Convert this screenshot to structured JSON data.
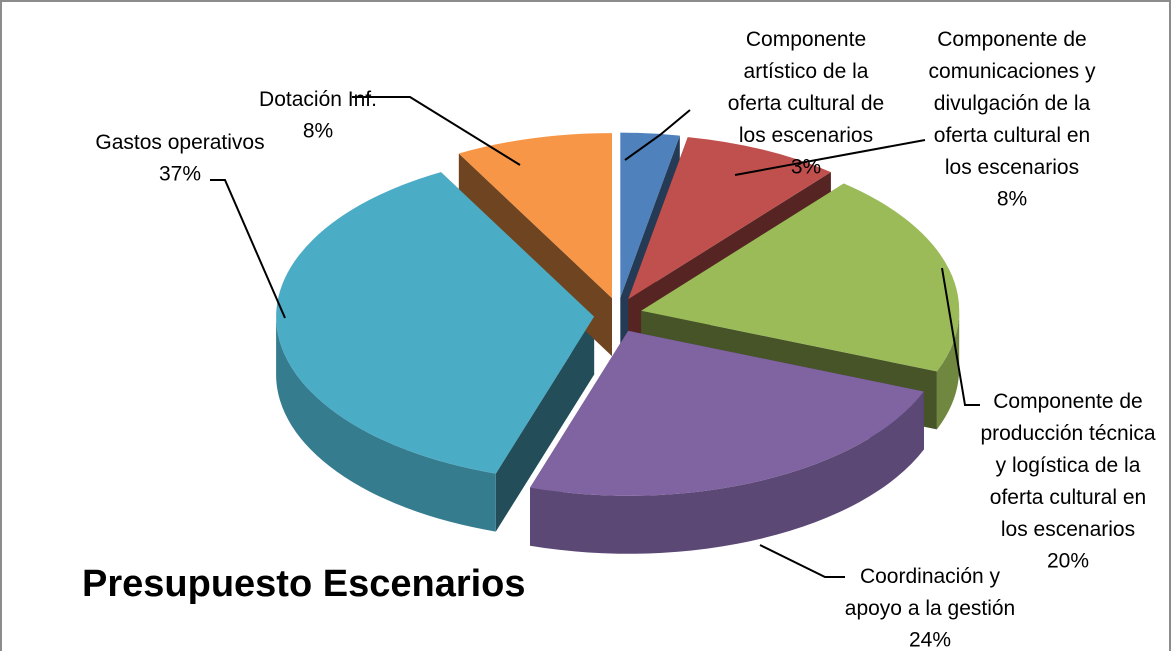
{
  "chart_data": {
    "type": "pie3d",
    "title": "Presupuesto Escenarios",
    "categories": [
      "Componente artístico de la oferta cultural de los escenarios",
      "Componente de comunicaciones y divulgación de la oferta cultural en los escenarios",
      "Componente de producción técnica y logística de la oferta cultural en los escenarios",
      "Coordinación y apoyo a la gestión",
      "Gastos operativos",
      "Dotación Inf."
    ],
    "values": [
      3,
      8,
      20,
      24,
      37,
      8
    ],
    "value_labels": [
      "3%",
      "8%",
      "20%",
      "24%",
      "37%",
      "8%"
    ],
    "colors": [
      "#4f81bd",
      "#c0504d",
      "#9bbb59",
      "#8064a2",
      "#4bacc6",
      "#f79646"
    ],
    "exploded": true
  }
}
